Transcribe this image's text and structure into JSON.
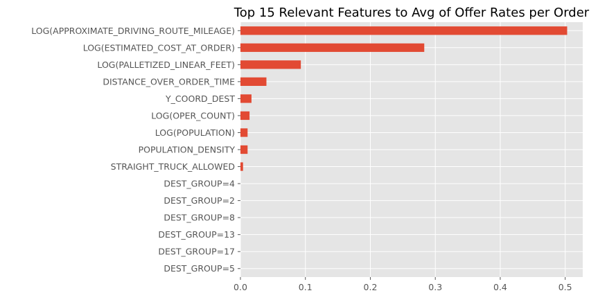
{
  "chart_data": {
    "type": "bar",
    "orientation": "horizontal",
    "title": "Top 15 Relevant Features to Avg of Offer Rates per Order",
    "xlabel": "",
    "ylabel": "",
    "xlim": [
      0,
      0.527
    ],
    "xticks": [
      0.0,
      0.1,
      0.2,
      0.3,
      0.4,
      0.5
    ],
    "xtick_labels": [
      "0.0",
      "0.1",
      "0.2",
      "0.3",
      "0.4",
      "0.5"
    ],
    "grid": true,
    "legend": "none",
    "categories": [
      "LOG(APPROXIMATE_DRIVING_ROUTE_MILEAGE)",
      "LOG(ESTIMATED_COST_AT_ORDER)",
      "LOG(PALLETIZED_LINEAR_FEET)",
      "DISTANCE_OVER_ORDER_TIME",
      "Y_COORD_DEST",
      "LOG(OPER_COUNT)",
      "LOG(POPULATION)",
      "POPULATION_DENSITY",
      "STRAIGHT_TRUCK_ALLOWED",
      "DEST_GROUP=4",
      "DEST_GROUP=2",
      "DEST_GROUP=8",
      "DEST_GROUP=13",
      "DEST_GROUP=17",
      "DEST_GROUP=5"
    ],
    "values": [
      0.503,
      0.283,
      0.093,
      0.04,
      0.017,
      0.014,
      0.011,
      0.011,
      0.004,
      0.0,
      0.0,
      0.0,
      0.0,
      0.0,
      0.0
    ],
    "colors": {
      "bar": "#E24A33",
      "background": "#E5E5E5",
      "grid": "#FFFFFF",
      "text": "#555555",
      "title": "#000000"
    }
  }
}
